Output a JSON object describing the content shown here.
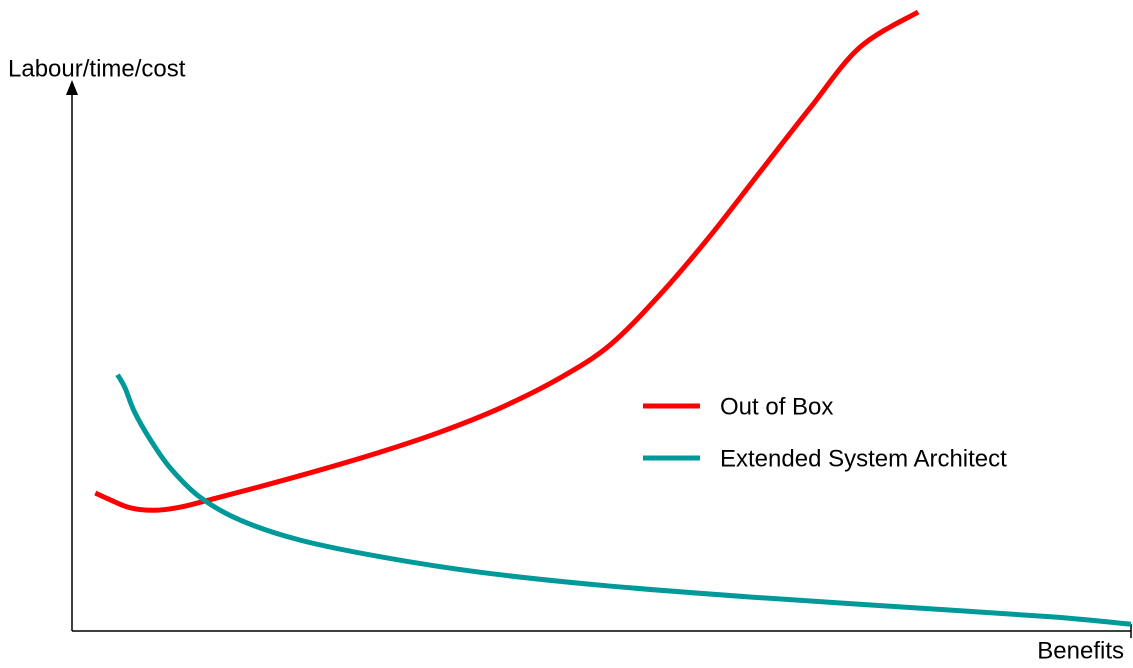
{
  "chart_data": {
    "type": "line",
    "x_label": "Benefits",
    "y_label": "Labour/time/cost",
    "xlim": [
      0,
      100
    ],
    "ylim": [
      0,
      100
    ],
    "series": [
      {
        "name": "Out of Box",
        "color": "#ff0000",
        "x": [
          2.2,
          3.6,
          5.5,
          7.8,
          10.2,
          13.0,
          17.7,
          23.4,
          29.1,
          34.7,
          40.4,
          46.1,
          50.8,
          55.5,
          60.2,
          64.9,
          69.7,
          74.4,
          79.9
        ],
        "values": [
          22.3,
          21.2,
          19.9,
          19.5,
          20.0,
          21.2,
          23.3,
          26.0,
          28.9,
          32.1,
          36.0,
          40.9,
          46.2,
          54.3,
          63.7,
          74.0,
          84.5,
          94.3,
          100
        ]
      },
      {
        "name": "Extended System Architect",
        "color": "#009999",
        "x": [
          4.3,
          5.0,
          5.9,
          7.4,
          9.3,
          12.1,
          15.9,
          21.5,
          29.1,
          38.5,
          49.9,
          64.0,
          78.2,
          92.4,
          100
        ],
        "values": [
          41.4,
          39.3,
          35.4,
          30.9,
          26.3,
          21.6,
          17.9,
          14.7,
          12.0,
          9.5,
          7.4,
          5.5,
          3.9,
          2.3,
          1.1
        ]
      }
    ]
  }
}
